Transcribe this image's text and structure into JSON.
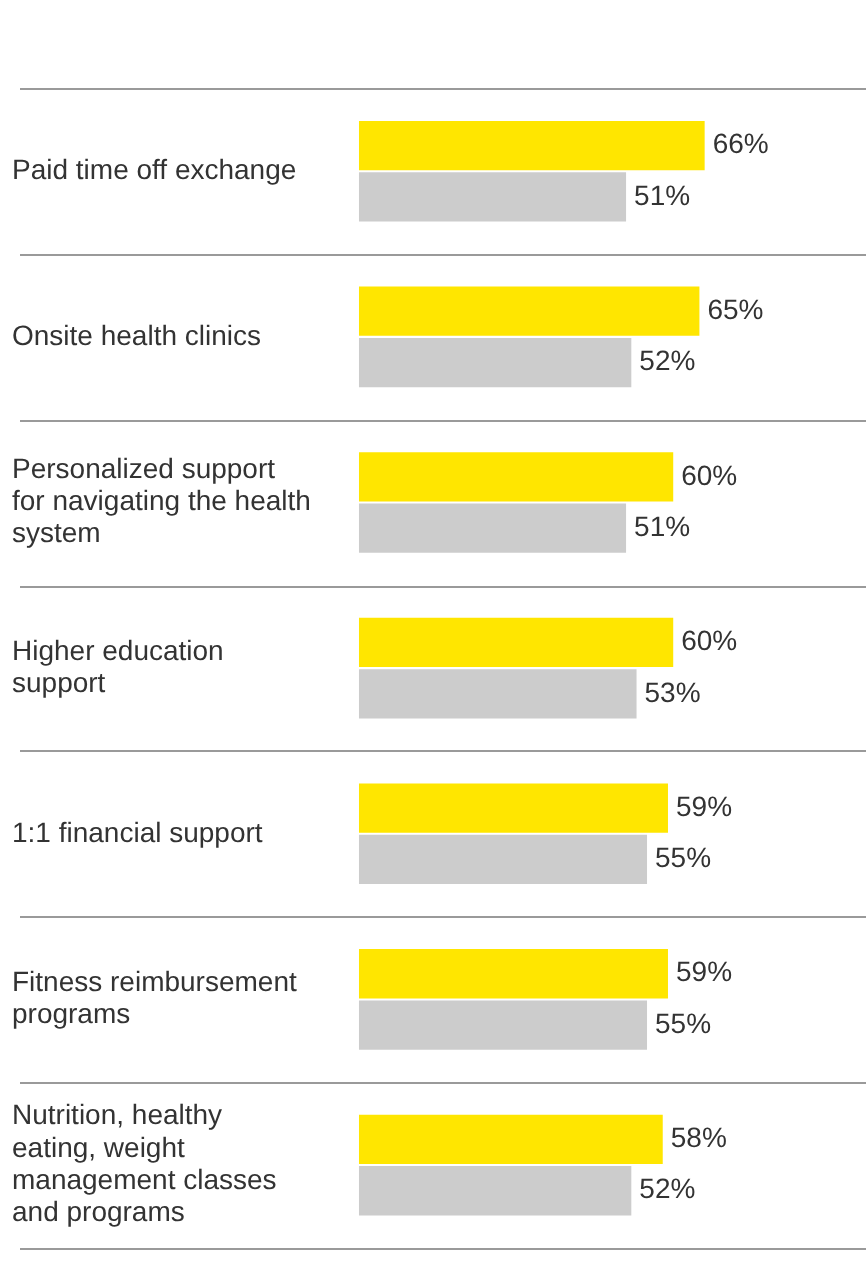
{
  "chart_data": {
    "type": "bar",
    "orientation": "horizontal",
    "categories": [
      "Paid time off exchange",
      "Onsite health clinics",
      "Personalized support for navigating the health system",
      "Higher education support",
      "1:1 financial support",
      "Fitness reimbursement programs",
      "Nutrition, healthy eating, weight management classes and programs"
    ],
    "series": [
      {
        "color": "#ffe600",
        "values": [
          66,
          65,
          60,
          60,
          59,
          59,
          58
        ],
        "value_labels": [
          "66%",
          "65%",
          "60%",
          "60%",
          "59%",
          "59%",
          "58%"
        ]
      },
      {
        "color": "#cccccc",
        "values": [
          51,
          52,
          51,
          53,
          55,
          55,
          52
        ],
        "value_labels": [
          "51%",
          "52%",
          "51%",
          "53%",
          "55%",
          "55%",
          "52%"
        ]
      }
    ],
    "grid": "y",
    "legend": false,
    "tick_labels": "y"
  }
}
